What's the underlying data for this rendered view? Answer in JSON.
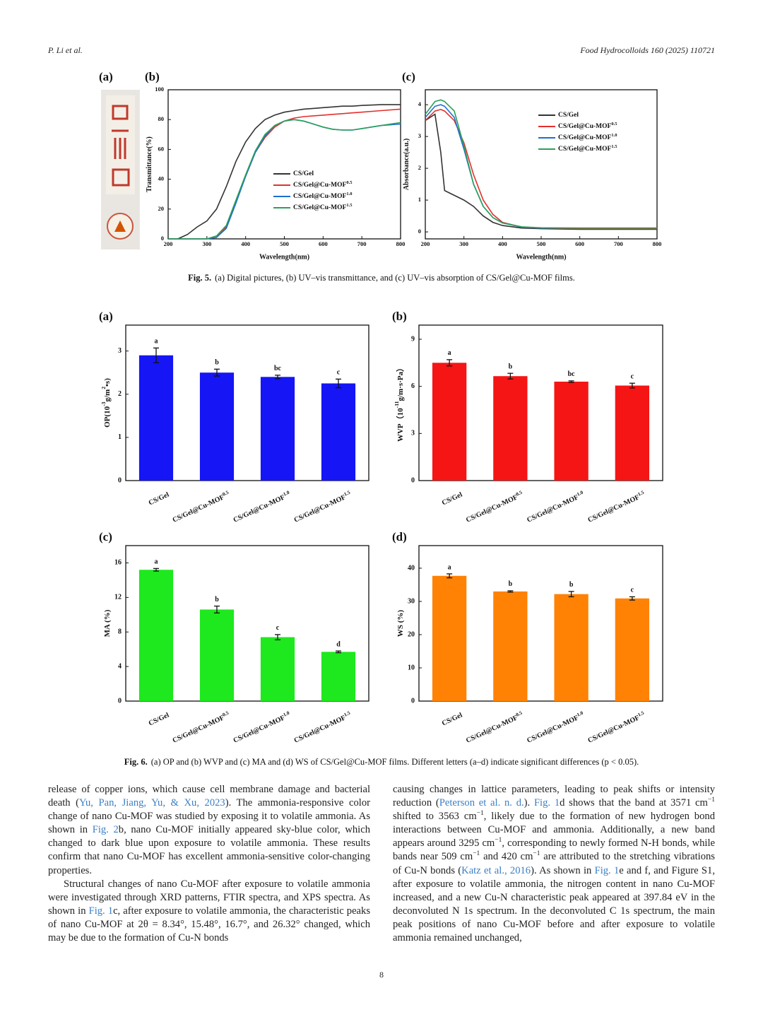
{
  "header": {
    "authors": "P. Li et al.",
    "journal": "Food Hydrocolloids 160 (2025) 110721"
  },
  "figure5": {
    "panel_a": "(a)",
    "caption_label": "Fig. 5.",
    "caption": "(a) Digital pictures, (b) UV–vis transmittance, and (c) UV–vis absorption of CS/Gel@Cu-MOF films."
  },
  "figure6": {
    "caption_label": "Fig. 6.",
    "caption": "(a) OP and (b) WVP and (c) MA and (d) WS of CS/Gel@Cu-MOF films. Different letters (a–d) indicate significant differences (p < 0.05)."
  },
  "chart_data": [
    {
      "type": "line",
      "panel": "(b)",
      "xlabel": "Wavelength(nm)",
      "ylabel": [
        "Transmittance(%)"
      ],
      "x": [
        200,
        225,
        250,
        275,
        300,
        325,
        350,
        375,
        400,
        425,
        450,
        475,
        500,
        525,
        550,
        575,
        600,
        625,
        650,
        675,
        700,
        750,
        800
      ],
      "xlim": [
        200,
        800
      ],
      "xticks": [
        200,
        300,
        400,
        500,
        600,
        700,
        800
      ],
      "ylim": [
        0,
        100
      ],
      "yticks": [
        0,
        20,
        40,
        60,
        80,
        100
      ],
      "legend": "lower right",
      "series": [
        {
          "name": "CS/Gel",
          "name_sup": null,
          "color": "#333333",
          "values": [
            0,
            0,
            3,
            8,
            12,
            20,
            35,
            52,
            65,
            74,
            80,
            83,
            85,
            86,
            87,
            87.5,
            88,
            88.5,
            89,
            89,
            89.5,
            90,
            90
          ]
        },
        {
          "name": "CS/Gel@Cu-MOF",
          "name_sup": "0.5",
          "color": "#e3302c",
          "values": [
            0,
            0,
            0,
            0,
            0,
            1,
            8,
            25,
            42,
            58,
            68,
            75,
            79,
            81,
            82,
            82.5,
            83,
            83.5,
            84,
            84.5,
            85,
            86,
            87
          ]
        },
        {
          "name": "CS/Gel@Cu-MOF",
          "name_sup": "1.0",
          "color": "#1f6fd0",
          "values": [
            0,
            0,
            0,
            0,
            0,
            1,
            7,
            24,
            42,
            58,
            69,
            76,
            79,
            80,
            79,
            77,
            75,
            73.5,
            73,
            73,
            74,
            76,
            77
          ]
        },
        {
          "name": "CS/Gel@Cu-MOF",
          "name_sup": "1.5",
          "color": "#2ca05a",
          "values": [
            0,
            0,
            0,
            0,
            0,
            2,
            9,
            26,
            43,
            59,
            70,
            76,
            79,
            80,
            79,
            77,
            75,
            73.5,
            73,
            73,
            74,
            76,
            78
          ]
        }
      ]
    },
    {
      "type": "line",
      "panel": "(c)",
      "xlabel": "Wavelength(nm)",
      "ylabel": [
        "Absorbance(a.u.)"
      ],
      "x": [
        200,
        225,
        240,
        250,
        275,
        300,
        325,
        350,
        375,
        400,
        450,
        500,
        600,
        700,
        800
      ],
      "xlim": [
        200,
        800
      ],
      "xticks": [
        200,
        300,
        400,
        500,
        600,
        700,
        800
      ],
      "ylim": [
        -0.22,
        4.47
      ],
      "yticks": [
        0,
        1,
        2,
        3,
        4
      ],
      "legend": "upper right",
      "series": [
        {
          "name": "CS/Gel",
          "name_sup": null,
          "color": "#333333",
          "values": [
            3.5,
            3.7,
            2.5,
            1.3,
            1.15,
            1.0,
            0.8,
            0.5,
            0.3,
            0.2,
            0.12,
            0.1,
            0.08,
            0.08,
            0.08
          ]
        },
        {
          "name": "CS/Gel@Cu-MOF",
          "name_sup": "0.5",
          "color": "#e3302c",
          "values": [
            3.5,
            3.8,
            3.85,
            3.8,
            3.5,
            2.8,
            1.8,
            1.0,
            0.55,
            0.3,
            0.15,
            0.12,
            0.1,
            0.1,
            0.1
          ]
        },
        {
          "name": "CS/Gel@Cu-MOF",
          "name_sup": "1.0",
          "color": "#1f6fd0",
          "values": [
            3.6,
            3.95,
            4.0,
            3.95,
            3.6,
            2.6,
            1.5,
            0.8,
            0.45,
            0.28,
            0.15,
            0.12,
            0.12,
            0.12,
            0.12
          ]
        },
        {
          "name": "CS/Gel@Cu-MOF",
          "name_sup": "1.5",
          "color": "#2ca05a",
          "values": [
            3.7,
            4.1,
            4.15,
            4.1,
            3.8,
            2.7,
            1.5,
            0.8,
            0.45,
            0.28,
            0.16,
            0.13,
            0.12,
            0.12,
            0.12
          ]
        }
      ]
    },
    {
      "type": "bar",
      "panel": "(a)",
      "ylabel": [
        "OP(10",
        "-3",
        "g/m",
        "2",
        "•s)"
      ],
      "color": "#1515f5",
      "categories": [
        "CS/Gel",
        "CS/Gel@Cu-MOF",
        "CS/Gel@Cu-MOF",
        "CS/Gel@Cu-MOF"
      ],
      "category_sups": [
        null,
        "0.5",
        "1.0",
        "1.5"
      ],
      "values": [
        2.9,
        2.5,
        2.4,
        2.25
      ],
      "errors": [
        0.17,
        0.08,
        0.04,
        0.1
      ],
      "annotations": [
        "a",
        "b",
        "bc",
        "c"
      ],
      "ylim": [
        0,
        3.6
      ],
      "yticks": [
        0,
        1,
        2,
        3
      ]
    },
    {
      "type": "bar",
      "panel": "(b)",
      "ylabel": [
        "WVP（10",
        "-11",
        "g/m·s·Pa）"
      ],
      "color": "#f51515",
      "categories": [
        "CS/Gel",
        "CS/Gel@Cu-MOF",
        "CS/Gel@Cu-MOF",
        "CS/Gel@Cu-MOF"
      ],
      "category_sups": [
        null,
        "0.5",
        "1.0",
        "1.5"
      ],
      "values": [
        7.5,
        6.65,
        6.3,
        6.05
      ],
      "errors": [
        0.2,
        0.18,
        0.05,
        0.15
      ],
      "annotations": [
        "a",
        "b",
        "bc",
        "c"
      ],
      "ylim": [
        0,
        9.9
      ],
      "yticks": [
        0,
        3,
        6,
        9
      ]
    },
    {
      "type": "bar",
      "panel": "(c)",
      "ylabel": [
        "MA (%)"
      ],
      "color": "#1ee81e",
      "categories": [
        "CS/Gel",
        "CS/Gel@Cu-MOF",
        "CS/Gel@Cu-MOF",
        "CS/Gel@Cu-MOF"
      ],
      "category_sups": [
        null,
        "0.5",
        "1.0",
        "1.5"
      ],
      "values": [
        15.2,
        10.6,
        7.4,
        5.7
      ],
      "errors": [
        0.15,
        0.4,
        0.3,
        0.1
      ],
      "annotations": [
        "a",
        "b",
        "c",
        "d"
      ],
      "ylim": [
        0,
        18
      ],
      "yticks": [
        0,
        4,
        8,
        12,
        16
      ]
    },
    {
      "type": "bar",
      "panel": "(d)",
      "ylabel": [
        "WS (%)"
      ],
      "color": "#ff8205",
      "categories": [
        "CS/Gel",
        "CS/Gel@Cu-MOF",
        "CS/Gel@Cu-MOF",
        "CS/Gel@Cu-MOF"
      ],
      "category_sups": [
        null,
        "0.5",
        "1.0",
        "1.5"
      ],
      "values": [
        37.7,
        33,
        32.2,
        30.9
      ],
      "errors": [
        0.6,
        0.2,
        0.8,
        0.5
      ],
      "annotations": [
        "a",
        "b",
        "b",
        "c"
      ],
      "ylim": [
        0,
        46.8
      ],
      "yticks": [
        0,
        10,
        20,
        30,
        40
      ]
    }
  ],
  "body": {
    "left": [
      [
        "release of copper ions, which cause cell membrane damage and bacterial death (",
        "Yu, Pan, Jiang, Yu, & Xu, 2023",
        "). The ammonia-responsive color change of nano Cu-MOF was studied by exposing it to volatile ammonia. As shown in ",
        "Fig. 2",
        "b, nano Cu-MOF initially appeared sky-blue color, which changed to dark blue upon exposure to volatile ammonia. These results confirm that nano Cu-MOF has excellent ammonia-sensitive color-changing properties."
      ],
      [
        "Structural changes of nano Cu-MOF after exposure to volatile ammonia were investigated through XRD patterns, FTIR spectra, and XPS spectra. As shown in ",
        "Fig. 1",
        "c, after exposure to volatile ammonia, the characteristic peaks of nano Cu-MOF at 2θ = 8.34°, 15.48°, 16.7°, and 26.32° changed, which may be due to the formation of Cu-N bonds"
      ]
    ],
    "right": [
      [
        "causing changes in lattice parameters, leading to peak shifts or intensity reduction (",
        "Peterson et al. n. d.",
        "). ",
        "Fig. 1",
        "d shows that the band at 3571 cm",
        "−1",
        " shifted to 3563 cm",
        "−1",
        ", likely due to the formation of new hydrogen bond interactions between Cu-MOF and ammonia. Additionally, a new band appears around 3295 cm",
        "−1",
        ", corresponding to newly formed N-H bonds, while bands near 509 cm",
        "−1",
        " and 420 cm",
        "−1",
        " are attributed to the stretching vibrations of Cu-N bonds (",
        "Katz et al., 2016",
        "). As shown in ",
        "Fig. 1",
        "e and f, and Figure S1, after exposure to volatile ammonia, the nitrogen content in nano Cu-MOF increased, and a new Cu-N characteristic peak appeared at 397.84 eV in the deconvoluted N 1s spectrum. In the deconvoluted C 1s spectrum, the main peak positions of nano Cu-MOF before and after exposure to volatile ammonia remained unchanged,"
      ]
    ]
  },
  "page_number": "8"
}
